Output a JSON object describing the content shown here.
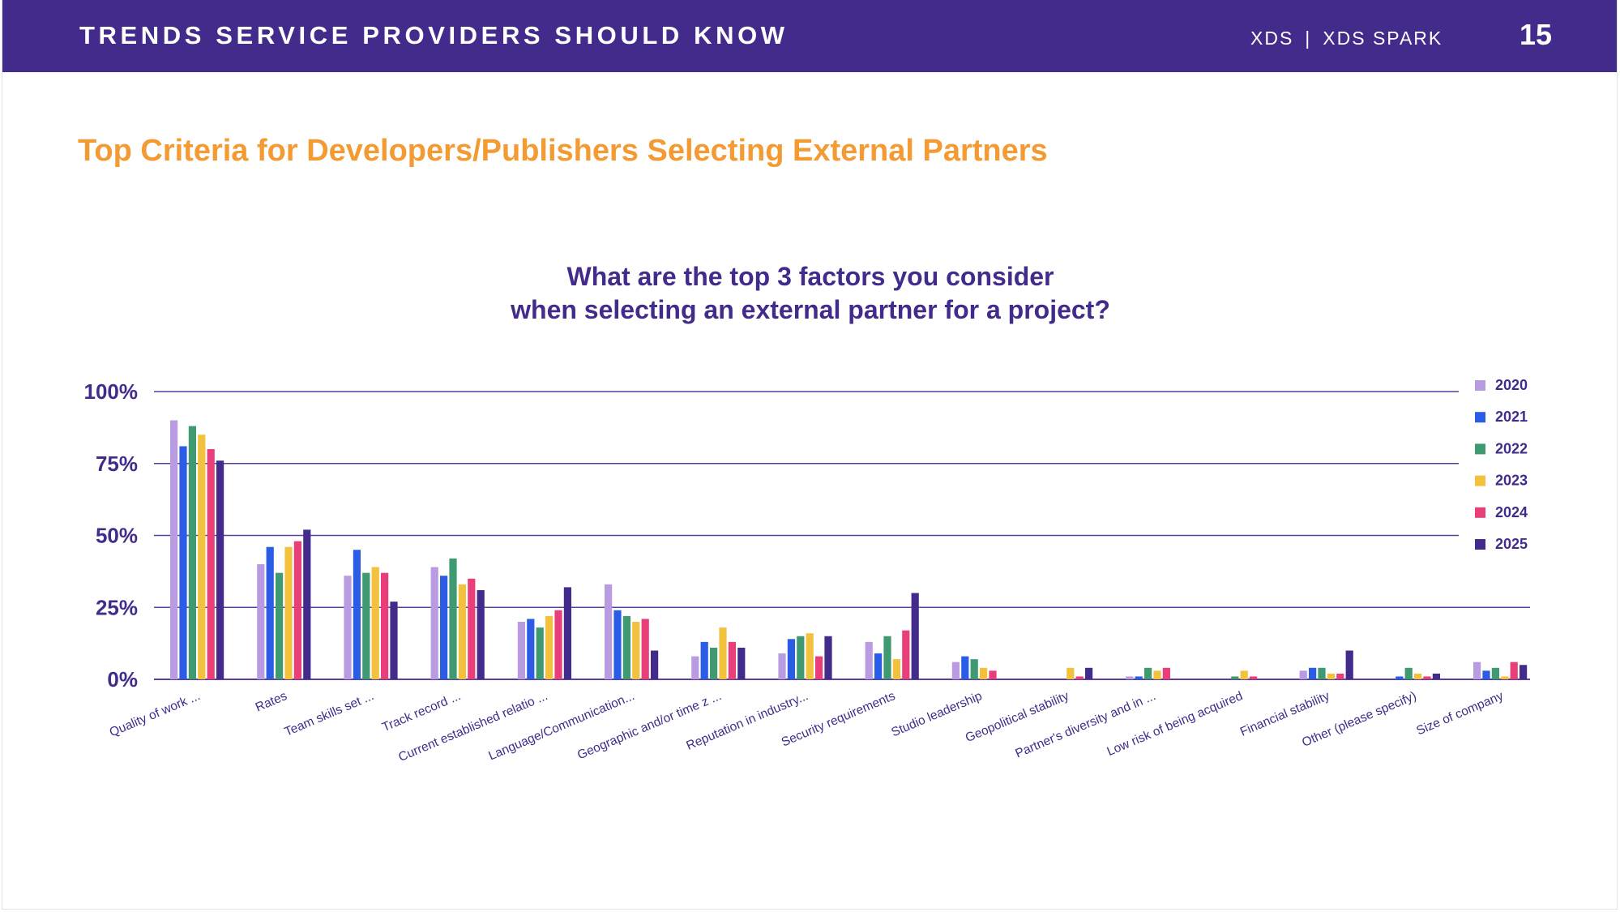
{
  "header": {
    "title": "TRENDS SERVICE PROVIDERS SHOULD KNOW",
    "brand_primary": "XDS",
    "brand_separator": "|",
    "brand_secondary": "XDS SPARK",
    "page_number": "15"
  },
  "section": {
    "title": "Top Criteria for Developers/Publishers Selecting External Partners"
  },
  "chart_data": {
    "type": "bar",
    "title_line1": "What are the top 3 factors you consider",
    "title_line2": "when selecting an external partner for a project?",
    "xlabel": "",
    "ylabel": "",
    "ylim": [
      0,
      100
    ],
    "yticks": [
      {
        "value": 0,
        "label": "0%"
      },
      {
        "value": 25,
        "label": "25%"
      },
      {
        "value": 50,
        "label": "50%"
      },
      {
        "value": 75,
        "label": "75%"
      },
      {
        "value": 100,
        "label": "100%"
      }
    ],
    "grid": true,
    "legend_position": "right",
    "categories": [
      "Quality of work  ...",
      "Rates",
      "Team skills set ...",
      "Track record ...",
      "Current established relatio ...",
      "Language/Communication...",
      "Geographic and/or time z ...",
      "Reputation in industry...",
      "Security requirements",
      "Studio leadership",
      "Geopolitical stability",
      "Partner's diversity and in ...",
      "Low risk of being acquired",
      "Financial stability",
      "Other (please specify)",
      "Size of company"
    ],
    "series": [
      {
        "name": "2020",
        "color": "#b89be0",
        "values": [
          90,
          40,
          36,
          39,
          20,
          33,
          8,
          9,
          13,
          6,
          0,
          1,
          0,
          3,
          0,
          6
        ]
      },
      {
        "name": "2021",
        "color": "#2b5ce6",
        "values": [
          81,
          46,
          45,
          36,
          21,
          24,
          13,
          14,
          9,
          8,
          0,
          1,
          0,
          4,
          1,
          3
        ]
      },
      {
        "name": "2022",
        "color": "#3f9a72",
        "values": [
          88,
          37,
          37,
          42,
          18,
          22,
          11,
          15,
          15,
          7,
          0,
          4,
          1,
          4,
          4,
          4
        ]
      },
      {
        "name": "2023",
        "color": "#f2c13d",
        "values": [
          85,
          46,
          39,
          33,
          22,
          20,
          18,
          16,
          7,
          4,
          4,
          3,
          3,
          2,
          2,
          1
        ]
      },
      {
        "name": "2024",
        "color": "#e83e7a",
        "values": [
          80,
          48,
          37,
          35,
          24,
          21,
          13,
          8,
          17,
          3,
          1,
          4,
          1,
          2,
          1,
          6
        ]
      },
      {
        "name": "2025",
        "color": "#432b8b",
        "values": [
          76,
          52,
          27,
          31,
          32,
          10,
          11,
          15,
          30,
          0,
          4,
          0,
          0,
          10,
          2,
          5
        ]
      }
    ]
  },
  "colors": {
    "header_background": "#432b8b",
    "section_title": "#f39a33",
    "chart_text": "#432b8b",
    "gridline": "#5a3f9e"
  }
}
